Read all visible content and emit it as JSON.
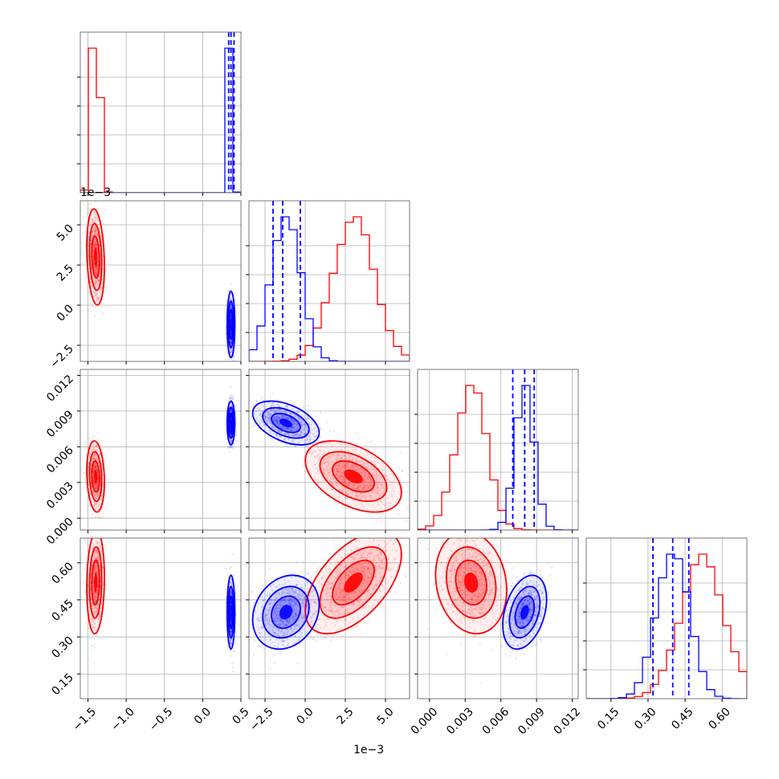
{
  "chart_data": {
    "type": "scatter",
    "title": "",
    "grid": true,
    "legend": "none",
    "parameters": [
      {
        "range": [
          -1.6,
          0.5
        ],
        "ticks": [
          -1.5,
          -1.0,
          -0.5,
          0.0,
          0.5
        ],
        "tick_labels": [
          "−1.5",
          "−1.0",
          "−0.5",
          "0.0",
          "0.5"
        ]
      },
      {
        "range": [
          -0.0035,
          0.0065
        ],
        "ticks": [
          -0.0025,
          0.0,
          0.0025,
          0.005
        ],
        "tick_labels": [
          "−2.5",
          "0.0",
          "2.5",
          "5.0"
        ],
        "offset_label": "1e−3"
      },
      {
        "range": [
          -0.001,
          0.0125
        ],
        "ticks": [
          0.0,
          0.003,
          0.006,
          0.009,
          0.012
        ],
        "tick_labels": [
          "0.000",
          "0.003",
          "0.006",
          "0.009",
          "0.012"
        ]
      },
      {
        "range": [
          0.05,
          0.7
        ],
        "ticks": [
          0.15,
          0.3,
          0.45,
          0.6
        ],
        "tick_labels": [
          "0.15",
          "0.30",
          "0.45",
          "0.60"
        ]
      }
    ],
    "x_offset_label": "1e−3",
    "series": [
      {
        "color": "#ff0000",
        "mean": [
          -1.4,
          0.003,
          0.0035,
          0.52
        ],
        "std": [
          0.05,
          0.0013,
          0.0013,
          0.09
        ]
      },
      {
        "color": "#0000ff",
        "mean": [
          0.37,
          -0.0012,
          0.008,
          0.4
        ],
        "std": [
          0.022,
          0.0009,
          0.0008,
          0.065
        ],
        "quantile_lines": [
          [
            0.34,
            0.37,
            0.41
          ],
          [
            -0.002,
            -0.0014,
            -0.0003
          ],
          [
            0.007,
            0.008,
            0.0088
          ],
          [
            0.32,
            0.4,
            0.465
          ]
        ]
      }
    ],
    "pairs": [
      {
        "x": 0,
        "y": 1,
        "red_corr": -0.2,
        "blue_corr": 0.0
      },
      {
        "x": 0,
        "y": 2,
        "red_corr": -0.15,
        "blue_corr": 0.0
      },
      {
        "x": 1,
        "y": 2,
        "red_corr": -0.45,
        "blue_corr": -0.45
      },
      {
        "x": 0,
        "y": 3,
        "red_corr": 0.1,
        "blue_corr": 0.0
      },
      {
        "x": 1,
        "y": 3,
        "red_corr": 0.55,
        "blue_corr": 0.2
      },
      {
        "x": 2,
        "y": 3,
        "red_corr": -0.15,
        "blue_corr": 0.35
      }
    ]
  }
}
